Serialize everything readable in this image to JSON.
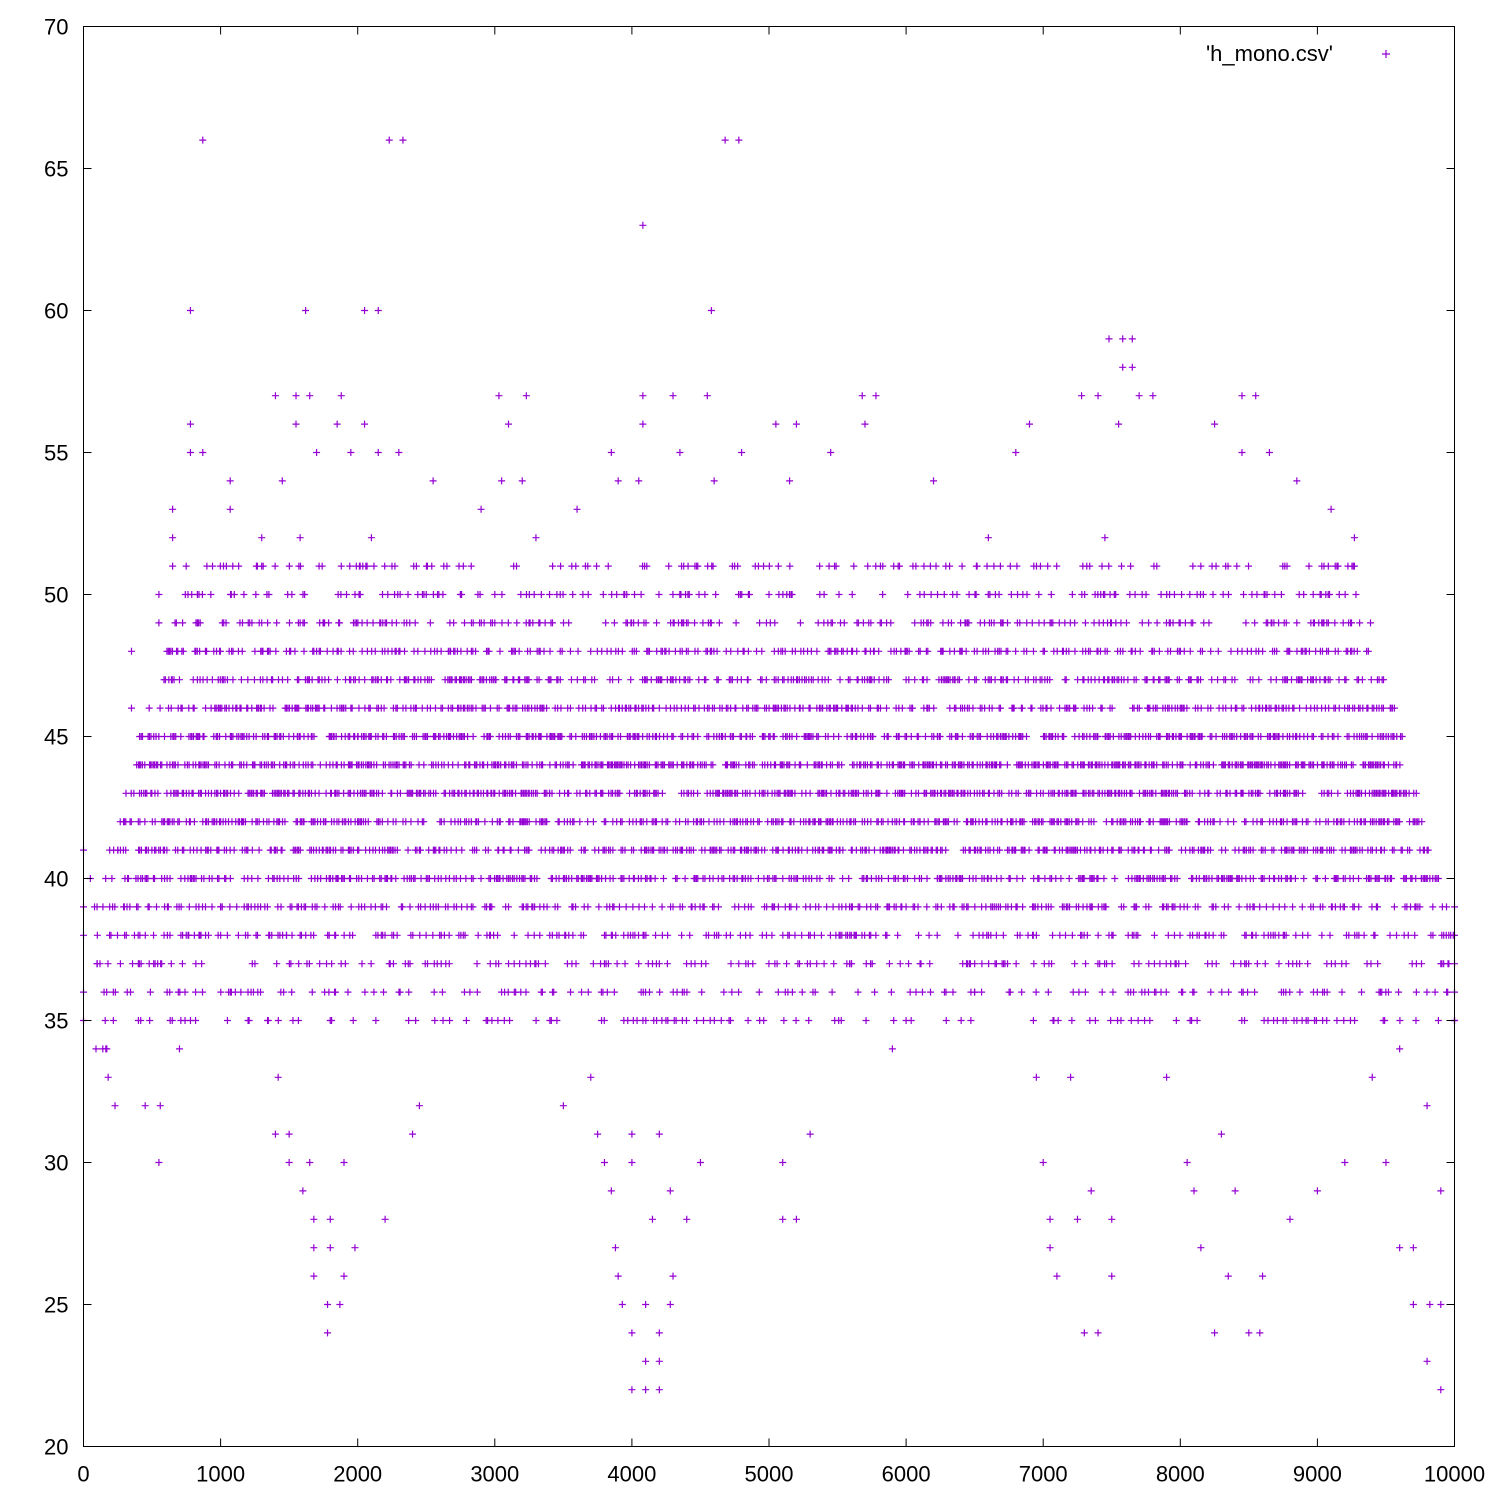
{
  "chart_data": {
    "type": "scatter",
    "title": "",
    "xlabel": "",
    "ylabel": "",
    "xlim": [
      0,
      10000
    ],
    "ylim": [
      20,
      70
    ],
    "xticks": [
      "0",
      "1000",
      "2000",
      "3000",
      "4000",
      "5000",
      "6000",
      "7000",
      "8000",
      "9000",
      "10000"
    ],
    "yticks": [
      "20",
      "25",
      "30",
      "35",
      "40",
      "45",
      "50",
      "55",
      "60",
      "65",
      "70"
    ],
    "legend": {
      "label": "'h_mono.csv'",
      "marker": "+",
      "position": "top-right"
    },
    "grid": false,
    "marker_color": "#9400d3",
    "series": [
      {
        "name": "'h_mono.csv'",
        "marker": "+",
        "note": "Dense band of integer-valued points (~10000 x positions, y mostly 34-52); representative sample transcribed",
        "points": [
          [
            0,
            41
          ],
          [
            0,
            39
          ],
          [
            0,
            38
          ],
          [
            0,
            36
          ],
          [
            0,
            35
          ],
          [
            50,
            40
          ],
          [
            100,
            37
          ],
          [
            150,
            36
          ],
          [
            170,
            34
          ],
          [
            180,
            33
          ],
          [
            230,
            32
          ],
          [
            250,
            41
          ],
          [
            300,
            38
          ],
          [
            350,
            46
          ],
          [
            350,
            48
          ],
          [
            400,
            37
          ],
          [
            450,
            32
          ],
          [
            500,
            44
          ],
          [
            550,
            50
          ],
          [
            550,
            49
          ],
          [
            550,
            30
          ],
          [
            560,
            32
          ],
          [
            650,
            53
          ],
          [
            650,
            52
          ],
          [
            650,
            51
          ],
          [
            700,
            47
          ],
          [
            700,
            34
          ],
          [
            750,
            43
          ],
          [
            780,
            60
          ],
          [
            780,
            56
          ],
          [
            780,
            55
          ],
          [
            800,
            46
          ],
          [
            830,
            49
          ],
          [
            870,
            66
          ],
          [
            870,
            55
          ],
          [
            900,
            51
          ],
          [
            950,
            42
          ],
          [
            1000,
            39
          ],
          [
            1050,
            47
          ],
          [
            1070,
            53
          ],
          [
            1070,
            54
          ],
          [
            1100,
            50
          ],
          [
            1150,
            45
          ],
          [
            1200,
            36
          ],
          [
            1250,
            44
          ],
          [
            1300,
            52
          ],
          [
            1350,
            48
          ],
          [
            1400,
            57
          ],
          [
            1400,
            31
          ],
          [
            1420,
            33
          ],
          [
            1450,
            54
          ],
          [
            1480,
            38
          ],
          [
            1500,
            31
          ],
          [
            1500,
            30
          ],
          [
            1550,
            57
          ],
          [
            1550,
            56
          ],
          [
            1580,
            52
          ],
          [
            1600,
            29
          ],
          [
            1620,
            60
          ],
          [
            1650,
            57
          ],
          [
            1650,
            30
          ],
          [
            1680,
            28
          ],
          [
            1680,
            27
          ],
          [
            1680,
            26
          ],
          [
            1700,
            55
          ],
          [
            1750,
            49
          ],
          [
            1780,
            25
          ],
          [
            1780,
            24
          ],
          [
            1800,
            28
          ],
          [
            1800,
            27
          ],
          [
            1850,
            56
          ],
          [
            1870,
            25
          ],
          [
            1880,
            57
          ],
          [
            1900,
            30
          ],
          [
            1900,
            26
          ],
          [
            1950,
            55
          ],
          [
            1980,
            27
          ],
          [
            2000,
            45
          ],
          [
            2050,
            60
          ],
          [
            2050,
            56
          ],
          [
            2100,
            52
          ],
          [
            2150,
            60
          ],
          [
            2150,
            55
          ],
          [
            2200,
            28
          ],
          [
            2230,
            66
          ],
          [
            2250,
            51
          ],
          [
            2300,
            55
          ],
          [
            2330,
            66
          ],
          [
            2350,
            47
          ],
          [
            2400,
            31
          ],
          [
            2450,
            32
          ],
          [
            2500,
            50
          ],
          [
            2550,
            54
          ],
          [
            2600,
            42
          ],
          [
            2700,
            48
          ],
          [
            2800,
            46
          ],
          [
            2900,
            53
          ],
          [
            3000,
            50
          ],
          [
            3030,
            57
          ],
          [
            3050,
            54
          ],
          [
            3100,
            56
          ],
          [
            3150,
            48
          ],
          [
            3200,
            54
          ],
          [
            3230,
            57
          ],
          [
            3300,
            52
          ],
          [
            3400,
            43
          ],
          [
            3500,
            32
          ],
          [
            3600,
            53
          ],
          [
            3650,
            41
          ],
          [
            3700,
            33
          ],
          [
            3750,
            31
          ],
          [
            3800,
            30
          ],
          [
            3850,
            55
          ],
          [
            3850,
            29
          ],
          [
            3880,
            27
          ],
          [
            3900,
            54
          ],
          [
            3900,
            26
          ],
          [
            3930,
            25
          ],
          [
            4000,
            31
          ],
          [
            4000,
            30
          ],
          [
            4000,
            24
          ],
          [
            4000,
            22
          ],
          [
            4050,
            54
          ],
          [
            4080,
            63
          ],
          [
            4080,
            57
          ],
          [
            4080,
            56
          ],
          [
            4100,
            25
          ],
          [
            4100,
            23
          ],
          [
            4100,
            22
          ],
          [
            4150,
            28
          ],
          [
            4200,
            31
          ],
          [
            4200,
            24
          ],
          [
            4200,
            23
          ],
          [
            4200,
            22
          ],
          [
            4280,
            29
          ],
          [
            4280,
            25
          ],
          [
            4300,
            57
          ],
          [
            4300,
            26
          ],
          [
            4350,
            55
          ],
          [
            4400,
            28
          ],
          [
            4450,
            43
          ],
          [
            4500,
            30
          ],
          [
            4550,
            57
          ],
          [
            4580,
            60
          ],
          [
            4600,
            54
          ],
          [
            4680,
            66
          ],
          [
            4700,
            46
          ],
          [
            4780,
            66
          ],
          [
            4800,
            55
          ],
          [
            4900,
            51
          ],
          [
            5000,
            50
          ],
          [
            5050,
            56
          ],
          [
            5100,
            30
          ],
          [
            5100,
            28
          ],
          [
            5150,
            54
          ],
          [
            5200,
            56
          ],
          [
            5200,
            28
          ],
          [
            5300,
            31
          ],
          [
            5400,
            49
          ],
          [
            5450,
            55
          ],
          [
            5500,
            44
          ],
          [
            5600,
            37
          ],
          [
            5680,
            57
          ],
          [
            5700,
            56
          ],
          [
            5780,
            57
          ],
          [
            5800,
            48
          ],
          [
            5900,
            34
          ],
          [
            6000,
            35
          ],
          [
            6100,
            42
          ],
          [
            6200,
            54
          ],
          [
            6300,
            47
          ],
          [
            6400,
            40
          ],
          [
            6500,
            36
          ],
          [
            6600,
            52
          ],
          [
            6700,
            49
          ],
          [
            6800,
            55
          ],
          [
            6900,
            56
          ],
          [
            6950,
            33
          ],
          [
            7000,
            41
          ],
          [
            7000,
            30
          ],
          [
            7050,
            28
          ],
          [
            7050,
            27
          ],
          [
            7100,
            26
          ],
          [
            7200,
            33
          ],
          [
            7250,
            28
          ],
          [
            7280,
            57
          ],
          [
            7300,
            24
          ],
          [
            7350,
            29
          ],
          [
            7400,
            57
          ],
          [
            7400,
            24
          ],
          [
            7450,
            52
          ],
          [
            7480,
            59
          ],
          [
            7500,
            28
          ],
          [
            7500,
            26
          ],
          [
            7550,
            56
          ],
          [
            7580,
            59
          ],
          [
            7580,
            58
          ],
          [
            7650,
            59
          ],
          [
            7650,
            58
          ],
          [
            7700,
            57
          ],
          [
            7750,
            50
          ],
          [
            7800,
            57
          ],
          [
            7850,
            45
          ],
          [
            7900,
            33
          ],
          [
            8000,
            44
          ],
          [
            8050,
            30
          ],
          [
            8100,
            29
          ],
          [
            8150,
            27
          ],
          [
            8200,
            41
          ],
          [
            8250,
            56
          ],
          [
            8250,
            24
          ],
          [
            8300,
            31
          ],
          [
            8350,
            26
          ],
          [
            8400,
            29
          ],
          [
            8450,
            57
          ],
          [
            8450,
            55
          ],
          [
            8500,
            24
          ],
          [
            8550,
            57
          ],
          [
            8580,
            24
          ],
          [
            8600,
            26
          ],
          [
            8650,
            55
          ],
          [
            8700,
            47
          ],
          [
            8800,
            28
          ],
          [
            8850,
            54
          ],
          [
            8900,
            50
          ],
          [
            9000,
            29
          ],
          [
            9100,
            53
          ],
          [
            9200,
            30
          ],
          [
            9270,
            52
          ],
          [
            9270,
            51
          ],
          [
            9300,
            46
          ],
          [
            9400,
            33
          ],
          [
            9450,
            46
          ],
          [
            9450,
            47
          ],
          [
            9500,
            30
          ],
          [
            9550,
            43
          ],
          [
            9600,
            34
          ],
          [
            9600,
            27
          ],
          [
            9700,
            27
          ],
          [
            9700,
            25
          ],
          [
            9800,
            32
          ],
          [
            9800,
            23
          ],
          [
            9820,
            25
          ],
          [
            9900,
            29
          ],
          [
            9900,
            22
          ],
          [
            9900,
            25
          ],
          [
            9950,
            36
          ],
          [
            10000,
            39
          ],
          [
            10000,
            38
          ],
          [
            10000,
            37
          ],
          [
            10000,
            36
          ],
          [
            10000,
            35
          ]
        ]
      }
    ]
  }
}
